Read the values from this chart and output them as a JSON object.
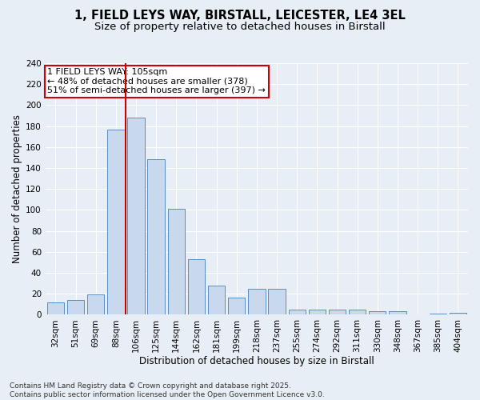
{
  "title_line1": "1, FIELD LEYS WAY, BIRSTALL, LEICESTER, LE4 3EL",
  "title_line2": "Size of property relative to detached houses in Birstall",
  "xlabel": "Distribution of detached houses by size in Birstall",
  "ylabel": "Number of detached properties",
  "categories": [
    "32sqm",
    "51sqm",
    "69sqm",
    "88sqm",
    "106sqm",
    "125sqm",
    "144sqm",
    "162sqm",
    "181sqm",
    "199sqm",
    "218sqm",
    "237sqm",
    "255sqm",
    "274sqm",
    "292sqm",
    "311sqm",
    "330sqm",
    "348sqm",
    "367sqm",
    "385sqm",
    "404sqm"
  ],
  "values": [
    12,
    14,
    19,
    177,
    188,
    148,
    101,
    53,
    28,
    16,
    25,
    25,
    5,
    5,
    5,
    5,
    3,
    3,
    0,
    1,
    2
  ],
  "bar_color": "#c9d9ed",
  "bar_edge_color": "#5b8ec4",
  "annotation_line1": "1 FIELD LEYS WAY: 105sqm",
  "annotation_line2": "← 48% of detached houses are smaller (378)",
  "annotation_line3": "51% of semi-detached houses are larger (397) →",
  "vline_x_index": 4,
  "vline_color": "#cc0000",
  "annotation_box_color": "#ffffff",
  "annotation_box_edge": "#cc0000",
  "background_color": "#e8eef5",
  "ylim": [
    0,
    240
  ],
  "yticks": [
    0,
    20,
    40,
    60,
    80,
    100,
    120,
    140,
    160,
    180,
    200,
    220,
    240
  ],
  "footer_text": "Contains HM Land Registry data © Crown copyright and database right 2025.\nContains public sector information licensed under the Open Government Licence v3.0.",
  "title_fontsize": 10.5,
  "subtitle_fontsize": 9.5,
  "axis_fontsize": 8.5,
  "tick_fontsize": 7.5,
  "annotation_fontsize": 8,
  "footer_fontsize": 6.5
}
